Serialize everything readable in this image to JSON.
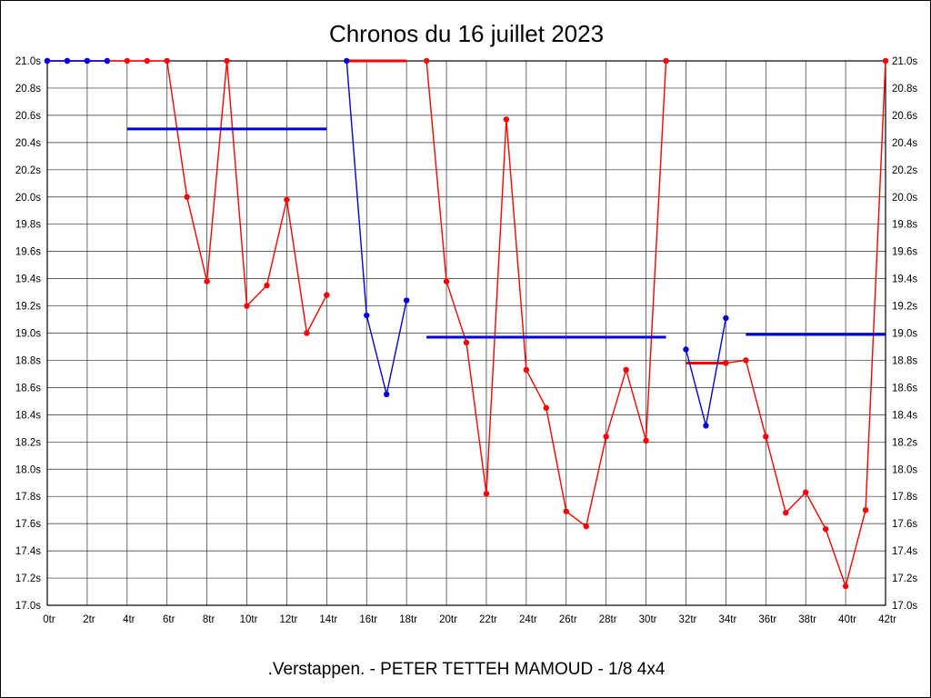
{
  "title": "Chronos du 16 juillet 2023",
  "caption": ".Verstappen. - PETER TETTEH MAMOUD - 1/8 4x4",
  "chart_data": {
    "type": "line",
    "title": "Chronos du 16 juillet 2023",
    "xlabel": "",
    "ylabel": "",
    "x_unit": "tr",
    "y_unit": "s",
    "xlim": [
      0,
      42
    ],
    "ylim": [
      17.0,
      21.0
    ],
    "x_step": 2,
    "y_step": 0.2,
    "grid": true,
    "legend_position": "none",
    "clip_value": 21.0,
    "x_ticks": [
      "0tr",
      "2tr",
      "4tr",
      "6tr",
      "8tr",
      "10tr",
      "12tr",
      "14tr",
      "16tr",
      "18tr",
      "20tr",
      "22tr",
      "24tr",
      "26tr",
      "28tr",
      "30tr",
      "32tr",
      "34tr",
      "36tr",
      "38tr",
      "40tr",
      "42tr"
    ],
    "y_ticks": [
      "21.0s",
      "20.8s",
      "20.6s",
      "20.4s",
      "20.2s",
      "20.0s",
      "19.8s",
      "19.6s",
      "19.4s",
      "19.2s",
      "19.0s",
      "18.8s",
      "18.6s",
      "18.4s",
      "18.2s",
      "18.0s",
      "17.8s",
      "17.6s",
      "17.4s",
      "17.2s",
      "17.0s"
    ],
    "series": [
      {
        "name": "red-driver",
        "color": "#ff0000",
        "segments": [
          {
            "style": "line-markers",
            "width": 1.4,
            "markers": true,
            "points": [
              [
                0,
                21.0
              ],
              [
                1,
                21.0
              ],
              [
                2,
                21.0
              ],
              [
                3,
                21.0
              ],
              [
                4,
                21.0
              ],
              [
                5,
                21.0
              ],
              [
                6,
                21.0
              ],
              [
                7,
                20.0
              ],
              [
                8,
                19.38
              ],
              [
                9,
                21.0
              ],
              [
                10,
                19.2
              ],
              [
                11,
                19.35
              ],
              [
                12,
                19.98
              ],
              [
                13,
                19.0
              ],
              [
                14,
                19.28
              ]
            ]
          },
          {
            "style": "flat-bar",
            "width": 3,
            "markers": false,
            "points": [
              [
                15,
                21.0
              ],
              [
                18,
                21.0
              ]
            ]
          },
          {
            "style": "line-markers",
            "width": 1.4,
            "markers": true,
            "points": [
              [
                19,
                21.0
              ],
              [
                20,
                19.38
              ],
              [
                21,
                18.93
              ],
              [
                22,
                17.82
              ],
              [
                23,
                20.57
              ],
              [
                24,
                18.73
              ],
              [
                25,
                18.45
              ],
              [
                26,
                17.69
              ],
              [
                27,
                17.58
              ],
              [
                28,
                18.24
              ],
              [
                29,
                18.73
              ],
              [
                30,
                18.21
              ],
              [
                31,
                21.0
              ]
            ]
          },
          {
            "style": "flat-bar",
            "width": 3,
            "markers": false,
            "points": [
              [
                32,
                18.78
              ],
              [
                34,
                18.78
              ]
            ]
          },
          {
            "style": "line-markers",
            "width": 1.4,
            "markers": true,
            "points": [
              [
                34,
                18.78
              ],
              [
                35,
                18.8
              ],
              [
                36,
                18.24
              ],
              [
                37,
                17.68
              ],
              [
                38,
                17.83
              ],
              [
                39,
                17.56
              ],
              [
                40,
                17.14
              ],
              [
                41,
                17.7
              ],
              [
                42,
                21.0
              ]
            ]
          }
        ]
      },
      {
        "name": "blue-driver",
        "color": "#0000dd",
        "segments": [
          {
            "style": "line-markers",
            "width": 1.4,
            "markers": true,
            "points": [
              [
                0,
                21.0
              ],
              [
                1,
                21.0
              ],
              [
                2,
                21.0
              ],
              [
                3,
                21.0
              ]
            ]
          },
          {
            "style": "flat-bar",
            "width": 3,
            "markers": false,
            "points": [
              [
                4,
                20.5
              ],
              [
                14,
                20.5
              ]
            ]
          },
          {
            "style": "line-markers",
            "width": 1.4,
            "markers": true,
            "points": [
              [
                15,
                21.0
              ],
              [
                16,
                19.13
              ],
              [
                17,
                18.55
              ],
              [
                18,
                19.24
              ]
            ]
          },
          {
            "style": "flat-bar",
            "width": 3,
            "markers": false,
            "points": [
              [
                19,
                18.97
              ],
              [
                31,
                18.97
              ]
            ]
          },
          {
            "style": "line-markers",
            "width": 1.4,
            "markers": true,
            "points": [
              [
                32,
                18.88
              ],
              [
                33,
                18.32
              ],
              [
                34,
                19.11
              ]
            ]
          },
          {
            "style": "flat-bar",
            "width": 3,
            "markers": false,
            "points": [
              [
                35,
                18.99
              ],
              [
                42,
                18.99
              ]
            ]
          }
        ]
      }
    ]
  }
}
